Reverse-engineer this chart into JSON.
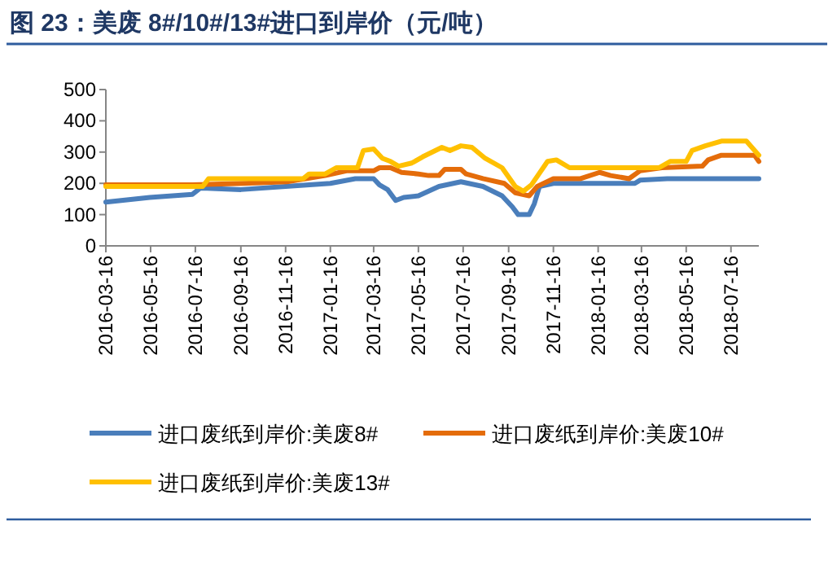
{
  "chart_data": {
    "type": "line",
    "title": "图 23：美废 8#/10#/13#进口到岸价（元/吨）",
    "xlim": [
      "2016-03-16",
      "2018-08-23"
    ],
    "xticks": [
      "2016-03-16",
      "2016-05-16",
      "2016-07-16",
      "2016-09-16",
      "2016-11-16",
      "2017-01-16",
      "2017-03-16",
      "2017-05-16",
      "2017-07-16",
      "2017-09-16",
      "2017-11-16",
      "2018-01-16",
      "2018-03-16",
      "2018-05-16",
      "2018-07-16"
    ],
    "ylim": [
      0,
      500
    ],
    "yticks": [
      0,
      100,
      200,
      300,
      400,
      500
    ],
    "grid": false,
    "legend": "bottom",
    "line_style": "solid",
    "marker": "none",
    "series": [
      {
        "name": "进口废纸到岸价:美废8#",
        "color": "#4a7ebb",
        "x": [
          "2016-03-16",
          "2016-05-15",
          "2016-07-12",
          "2016-07-23",
          "2016-09-16",
          "2016-11-16",
          "2017-01-16",
          "2017-02-19",
          "2017-03-16",
          "2017-03-24",
          "2017-04-04",
          "2017-04-15",
          "2017-04-26",
          "2017-05-16",
          "2017-06-13",
          "2017-07-13",
          "2017-08-12",
          "2017-09-07",
          "2017-09-21",
          "2017-09-29",
          "2017-10-14",
          "2017-10-21",
          "2017-10-28",
          "2017-11-16",
          "2018-03-07",
          "2018-03-14",
          "2018-04-20",
          "2018-08-23"
        ],
        "values": [
          140,
          155,
          165,
          185,
          180,
          190,
          200,
          215,
          215,
          195,
          180,
          145,
          155,
          160,
          190,
          205,
          190,
          160,
          125,
          100,
          100,
          135,
          190,
          200,
          200,
          210,
          215,
          215
        ]
      },
      {
        "name": "进口废纸到岸价:美废10#",
        "color": "#e46c0a",
        "x": [
          "2016-03-16",
          "2016-07-12",
          "2016-09-20",
          "2016-11-18",
          "2017-01-09",
          "2017-02-07",
          "2017-03-16",
          "2017-03-24",
          "2017-04-08",
          "2017-04-23",
          "2017-05-16",
          "2017-05-30",
          "2017-06-13",
          "2017-06-21",
          "2017-07-13",
          "2017-07-20",
          "2017-08-12",
          "2017-09-10",
          "2017-09-25",
          "2017-10-14",
          "2017-10-25",
          "2017-11-16",
          "2017-12-23",
          "2018-01-18",
          "2018-02-02",
          "2018-02-27",
          "2018-03-14",
          "2018-04-13",
          "2018-06-07",
          "2018-06-15",
          "2018-07-03",
          "2018-08-17",
          "2018-08-23"
        ],
        "values": [
          195,
          195,
          200,
          205,
          225,
          240,
          240,
          250,
          250,
          235,
          230,
          225,
          225,
          245,
          245,
          230,
          215,
          200,
          170,
          160,
          190,
          215,
          215,
          235,
          225,
          215,
          240,
          250,
          255,
          275,
          290,
          290,
          270
        ]
      },
      {
        "name": "进口废纸到岸价:美废13#",
        "color": "#ffc000",
        "x": [
          "2016-03-16",
          "2016-07-26",
          "2016-08-03",
          "2016-12-10",
          "2016-12-18",
          "2017-01-09",
          "2017-01-24",
          "2017-02-22",
          "2017-03-02",
          "2017-03-16",
          "2017-03-28",
          "2017-04-08",
          "2017-04-19",
          "2017-05-07",
          "2017-05-22",
          "2017-06-17",
          "2017-06-28",
          "2017-07-13",
          "2017-07-28",
          "2017-08-15",
          "2017-09-07",
          "2017-09-25",
          "2017-10-06",
          "2017-10-17",
          "2017-11-08",
          "2017-11-20",
          "2017-12-08",
          "2018-04-09",
          "2018-04-24",
          "2018-05-16",
          "2018-05-24",
          "2018-06-11",
          "2018-07-03",
          "2018-08-06",
          "2018-08-23"
        ],
        "values": [
          190,
          190,
          215,
          215,
          230,
          230,
          250,
          250,
          305,
          310,
          280,
          270,
          255,
          265,
          285,
          315,
          305,
          320,
          315,
          280,
          250,
          190,
          175,
          195,
          270,
          275,
          250,
          250,
          270,
          270,
          305,
          320,
          335,
          335,
          290
        ]
      }
    ]
  }
}
